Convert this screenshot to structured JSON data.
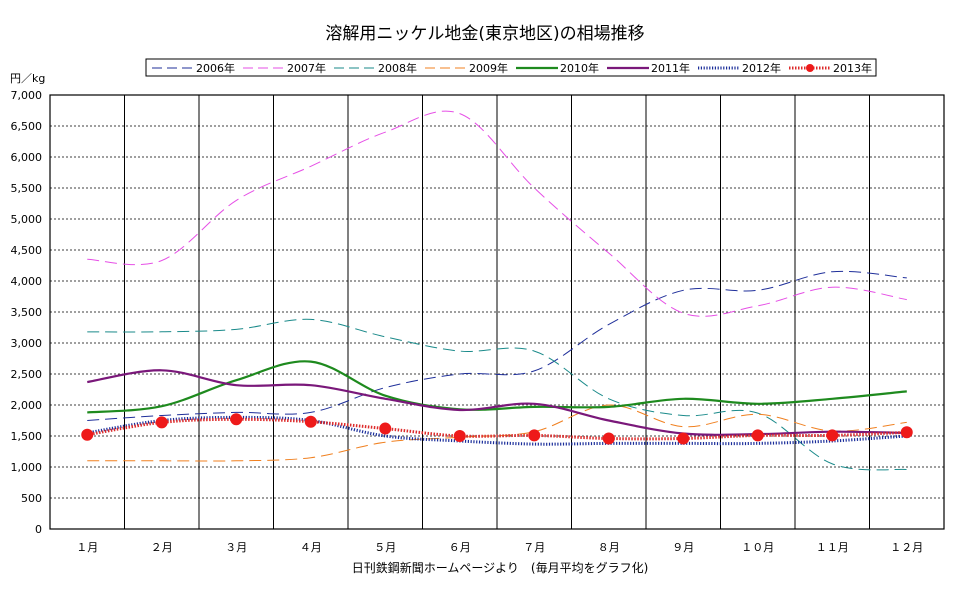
{
  "chart_data": {
    "type": "line",
    "title": "溶解用ニッケル地金(東京地区)の相場推移",
    "ylabel": "円／kg",
    "xlabel": "日刊鉄鋼新聞ホームページより　(毎月平均をグラフ化)",
    "ylim": [
      0,
      7000
    ],
    "ystep": 500,
    "grid": true,
    "legend_position": "top",
    "categories": [
      "１月",
      "２月",
      "３月",
      "４月",
      "５月",
      "６月",
      "７月",
      "８月",
      "９月",
      "１０月",
      "１１月",
      "１２月"
    ],
    "yticks": [
      "0",
      "500",
      "1,000",
      "1,500",
      "2,000",
      "2,500",
      "3,000",
      "3,500",
      "4,000",
      "4,500",
      "5,000",
      "5,500",
      "6,000",
      "6,500",
      "7,000"
    ],
    "series": [
      {
        "name": "2006年",
        "color": "#1f2f9a",
        "style": "longdash",
        "values": [
          1750,
          1830,
          1880,
          1880,
          2280,
          2500,
          2550,
          3300,
          3850,
          3850,
          4150,
          4050
        ]
      },
      {
        "name": "2007年",
        "color": "#e64fe6",
        "style": "longdash",
        "values": [
          4350,
          4330,
          5300,
          5850,
          6400,
          6700,
          5500,
          4450,
          3480,
          3600,
          3900,
          3700
        ]
      },
      {
        "name": "2008年",
        "color": "#1a8a8a",
        "style": "longdash",
        "values": [
          3180,
          3180,
          3220,
          3380,
          3100,
          2870,
          2870,
          2100,
          1830,
          1870,
          1050,
          960
        ]
      },
      {
        "name": "2009年",
        "color": "#f08020",
        "style": "longdash",
        "values": [
          1100,
          1100,
          1100,
          1150,
          1400,
          1480,
          1570,
          2000,
          1650,
          1850,
          1580,
          1720
        ]
      },
      {
        "name": "2010年",
        "color": "#1e8a1e",
        "style": "solid",
        "values": [
          1880,
          1980,
          2400,
          2700,
          2150,
          1930,
          1970,
          1970,
          2100,
          2020,
          2100,
          2220
        ]
      },
      {
        "name": "2011年",
        "color": "#7a187a",
        "style": "solid",
        "values": [
          2370,
          2560,
          2320,
          2320,
          2100,
          1920,
          2020,
          1750,
          1540,
          1530,
          1570,
          1550
        ]
      },
      {
        "name": "2012年",
        "color": "#1a2d9a",
        "style": "dotted",
        "values": [
          1550,
          1750,
          1800,
          1750,
          1500,
          1420,
          1370,
          1380,
          1380,
          1380,
          1420,
          1500
        ]
      },
      {
        "name": "2013年",
        "color": "#dd2b2b",
        "style": "marker",
        "values": [
          1520,
          1720,
          1770,
          1730,
          1620,
          1500,
          1510,
          1460,
          1460,
          1510,
          1510,
          1560
        ]
      }
    ]
  }
}
